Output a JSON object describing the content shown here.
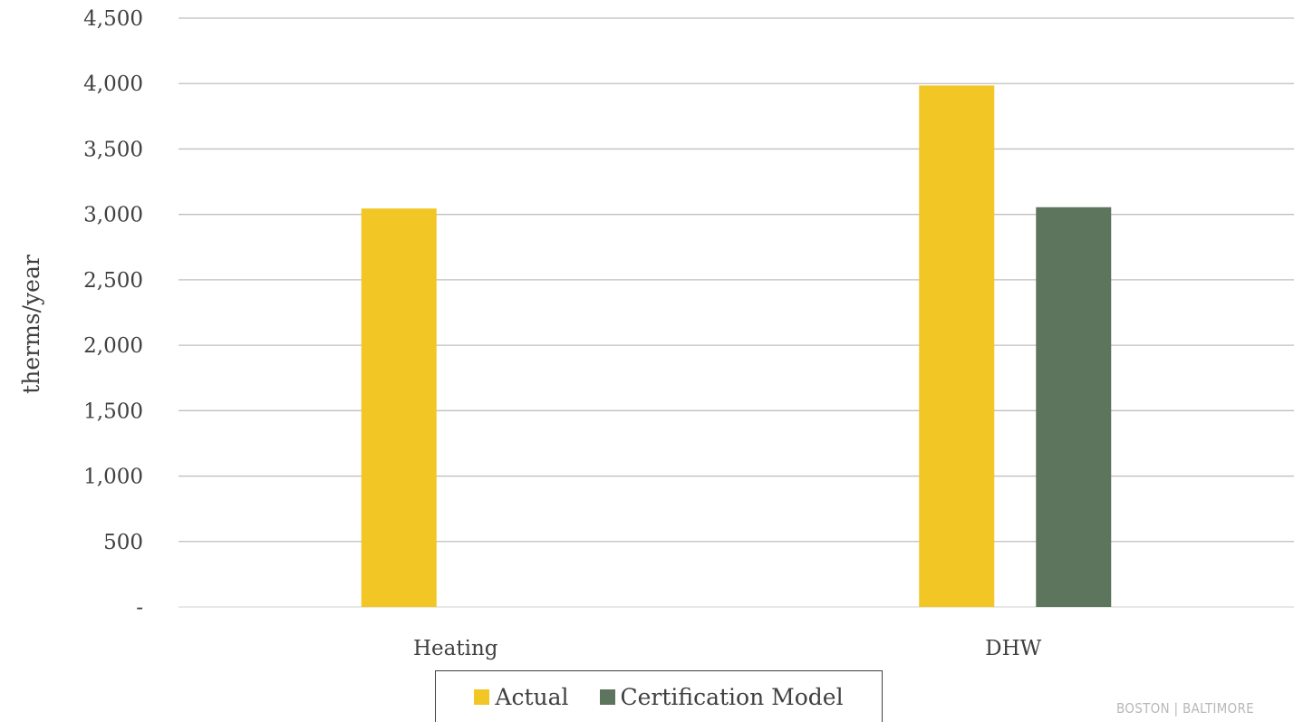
{
  "chart_data": {
    "type": "bar",
    "categories": [
      "Heating",
      "DHW"
    ],
    "series": [
      {
        "name": "Actual",
        "values": [
          3045,
          3985
        ],
        "color": "#F2C625"
      },
      {
        "name": "Certification Model",
        "values": [
          0,
          3055
        ],
        "color": "#5D755C"
      }
    ],
    "title": "",
    "xlabel": "",
    "ylabel": "therms/year",
    "ylim": [
      0,
      4500
    ],
    "yticks": [
      0,
      500,
      1000,
      1500,
      2000,
      2500,
      3000,
      3500,
      4000,
      4500
    ],
    "ytick_labels": [
      "-",
      "500",
      "1,000",
      "1,500",
      "2,000",
      "2,500",
      "3,000",
      "3,500",
      "4,000",
      "4,500"
    ],
    "grid": true,
    "legend_position": "bottom"
  },
  "footer_text": "BOSTON | BALTIMORE"
}
